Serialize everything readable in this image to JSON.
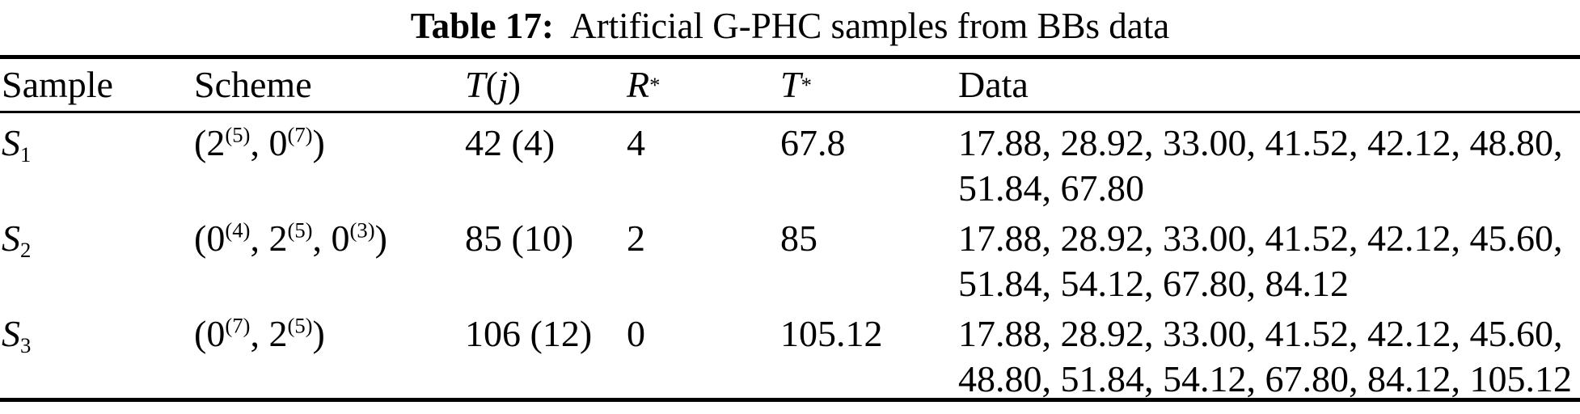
{
  "title": {
    "label": "Table 17:",
    "text": "Artificial G-PHC samples from BBs data"
  },
  "colors": {
    "text": "#000000",
    "background": "#ffffff",
    "rule": "#000000"
  },
  "table": {
    "headers": {
      "sample": [
        {
          "t": "Sample"
        }
      ],
      "scheme": [
        {
          "t": "Scheme"
        }
      ],
      "tj": [
        {
          "t": "T",
          "i": true
        },
        {
          "t": "("
        },
        {
          "t": "j",
          "i": true
        },
        {
          "t": ")"
        }
      ],
      "rstar": [
        {
          "t": "R",
          "i": true
        },
        {
          "sup": "*"
        }
      ],
      "tstar": [
        {
          "t": "T",
          "i": true
        },
        {
          "sup": "*"
        }
      ],
      "data": [
        {
          "t": "Data"
        }
      ]
    },
    "rows": [
      {
        "sample": [
          {
            "t": "S",
            "script": true
          },
          {
            "sub": "1"
          }
        ],
        "scheme": [
          {
            "t": "(2"
          },
          {
            "sup": "(5)"
          },
          {
            "t": ", 0"
          },
          {
            "sup": "(7)"
          },
          {
            "t": ")"
          }
        ],
        "tj": "42 (4)",
        "rstar": "4",
        "tstar": "67.8",
        "data_lines": [
          "17.88, 28.92, 33.00, 41.52, 42.12, 48.80,",
          "51.84, 67.80"
        ]
      },
      {
        "sample": [
          {
            "t": "S",
            "script": true
          },
          {
            "sub": "2"
          }
        ],
        "scheme": [
          {
            "t": "(0"
          },
          {
            "sup": "(4)"
          },
          {
            "t": ", 2"
          },
          {
            "sup": "(5)"
          },
          {
            "t": ", 0"
          },
          {
            "sup": "(3)"
          },
          {
            "t": ")"
          }
        ],
        "tj": "85 (10)",
        "rstar": "2",
        "tstar": "85",
        "data_lines": [
          "17.88, 28.92, 33.00, 41.52, 42.12, 45.60,",
          "51.84, 54.12, 67.80, 84.12"
        ]
      },
      {
        "sample": [
          {
            "t": "S",
            "script": true
          },
          {
            "sub": "3"
          }
        ],
        "scheme": [
          {
            "t": "(0"
          },
          {
            "sup": "(7)"
          },
          {
            "t": ", 2"
          },
          {
            "sup": "(5)"
          },
          {
            "t": ")"
          }
        ],
        "tj": "106 (12)",
        "rstar": "0",
        "tstar": "105.12",
        "data_lines": [
          "17.88, 28.92, 33.00, 41.52, 42.12, 45.60,",
          "48.80, 51.84, 54.12, 67.80, 84.12, 105.12"
        ]
      }
    ]
  }
}
